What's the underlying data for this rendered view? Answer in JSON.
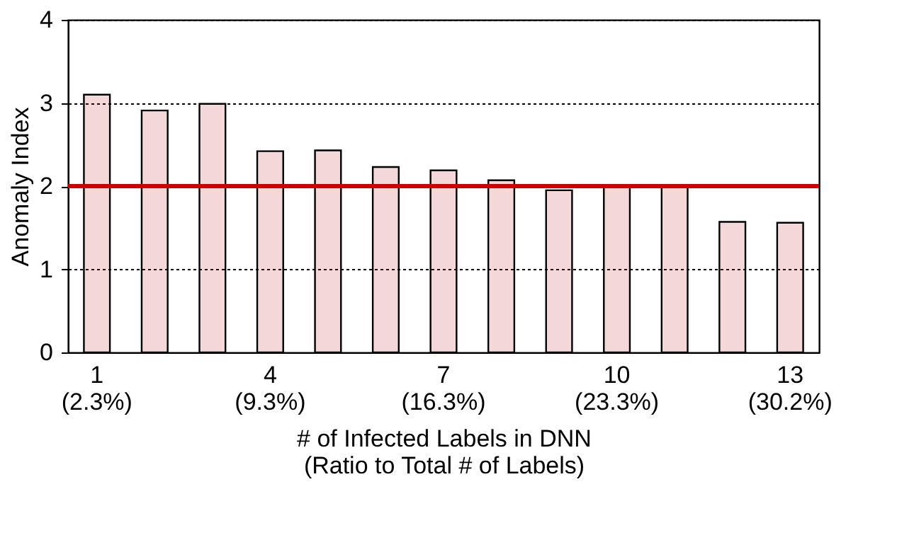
{
  "chart_data": {
    "type": "bar",
    "xlabel": "# of Infected Labels in DNN\n(Ratio to Total # of Labels)",
    "ylabel": "Anomaly Index",
    "categories": [
      "1\n(2.3%)",
      null,
      null,
      "4\n(9.3%)",
      null,
      null,
      "7\n(16.3%)",
      null,
      null,
      "10\n(23.3%)",
      null,
      null,
      "13\n(30.2%)"
    ],
    "values": [
      3.1,
      2.91,
      2.99,
      2.42,
      2.43,
      2.23,
      2.19,
      2.07,
      1.95,
      2.01,
      1.99,
      1.57,
      1.56
    ],
    "color": "#c0272d",
    "ylim": [
      0,
      4
    ],
    "yticks": [
      0,
      1,
      2,
      3,
      4
    ],
    "grid": "y",
    "ref_lines": [
      {
        "axis": "y",
        "value": 2,
        "color": "#cc0000"
      }
    ]
  }
}
